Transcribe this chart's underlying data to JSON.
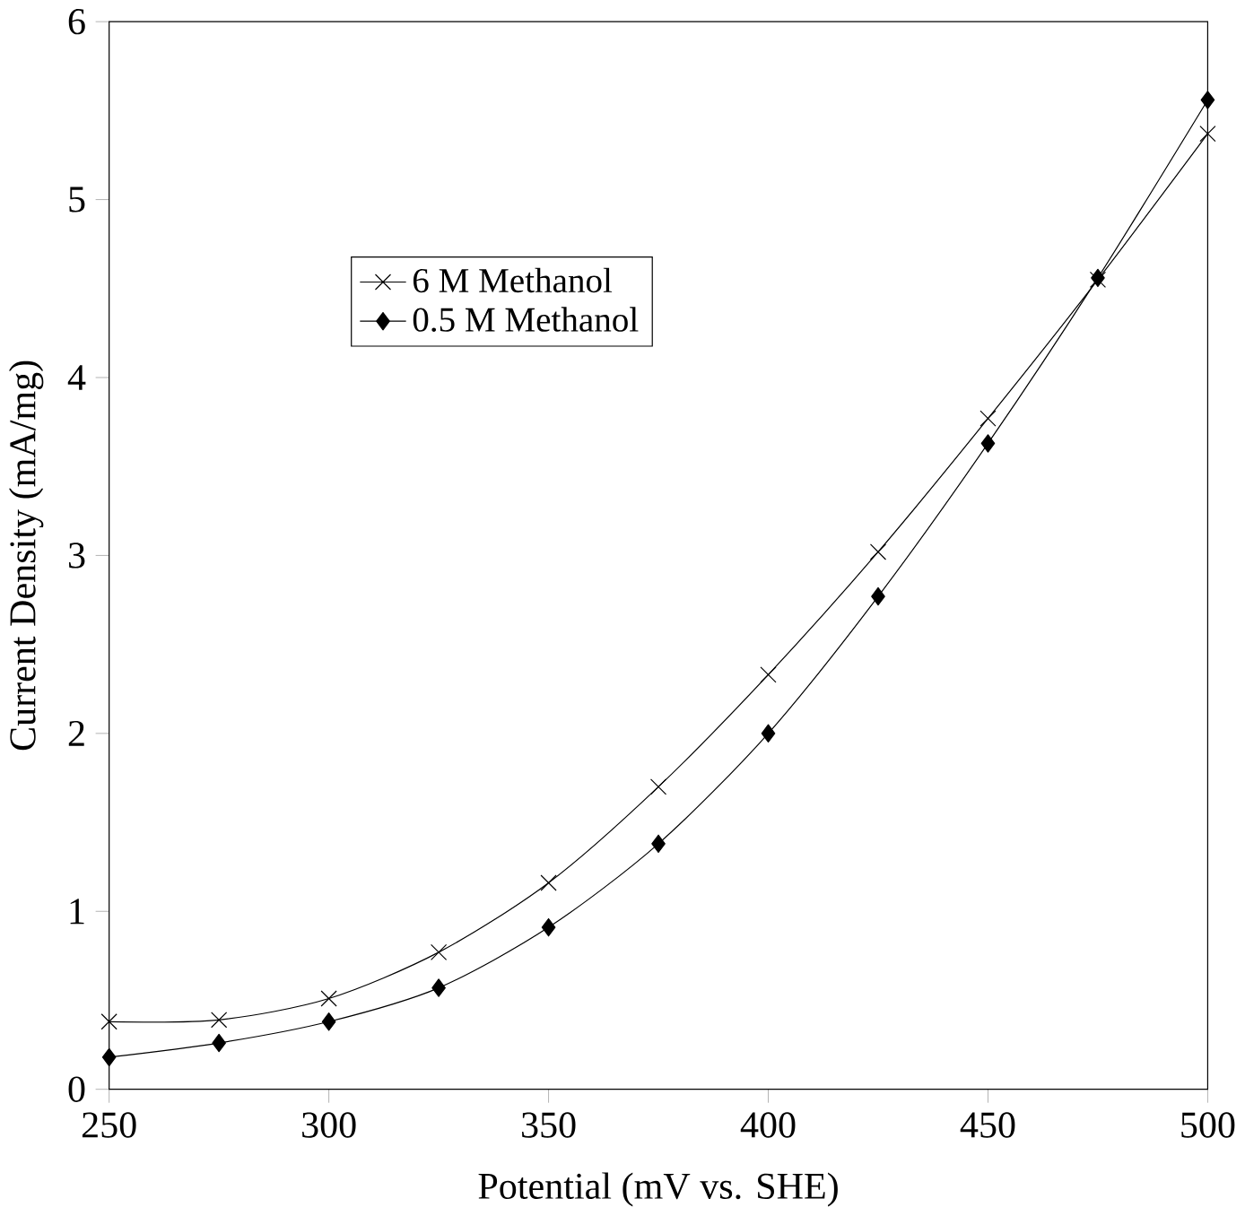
{
  "chart_data": {
    "type": "line",
    "xlabel": "Potential (mV vs. SHE)",
    "ylabel": "Current Density (mA/mg)",
    "x": [
      250,
      275,
      300,
      325,
      350,
      375,
      400,
      425,
      450,
      475,
      500
    ],
    "series": [
      {
        "name": "6 M Methanol",
        "color": "#000000",
        "marker": "cross",
        "values": [
          0.38,
          0.39,
          0.51,
          0.77,
          1.16,
          1.7,
          2.33,
          3.02,
          3.77,
          4.55,
          5.37
        ]
      },
      {
        "name": "0.5 M Methanol",
        "color": "#000000",
        "marker": "diamond",
        "values": [
          0.18,
          0.26,
          0.38,
          0.57,
          0.91,
          1.38,
          2.0,
          2.77,
          3.63,
          4.56,
          5.56
        ]
      }
    ],
    "xlim": [
      250,
      500
    ],
    "xticks": [
      250,
      300,
      350,
      400,
      450,
      500
    ],
    "ylim": [
      0,
      6
    ],
    "yticks": [
      0,
      1,
      2,
      3,
      4,
      5,
      6
    ],
    "grid": false,
    "legend": "top left",
    "line_style": "solid"
  }
}
